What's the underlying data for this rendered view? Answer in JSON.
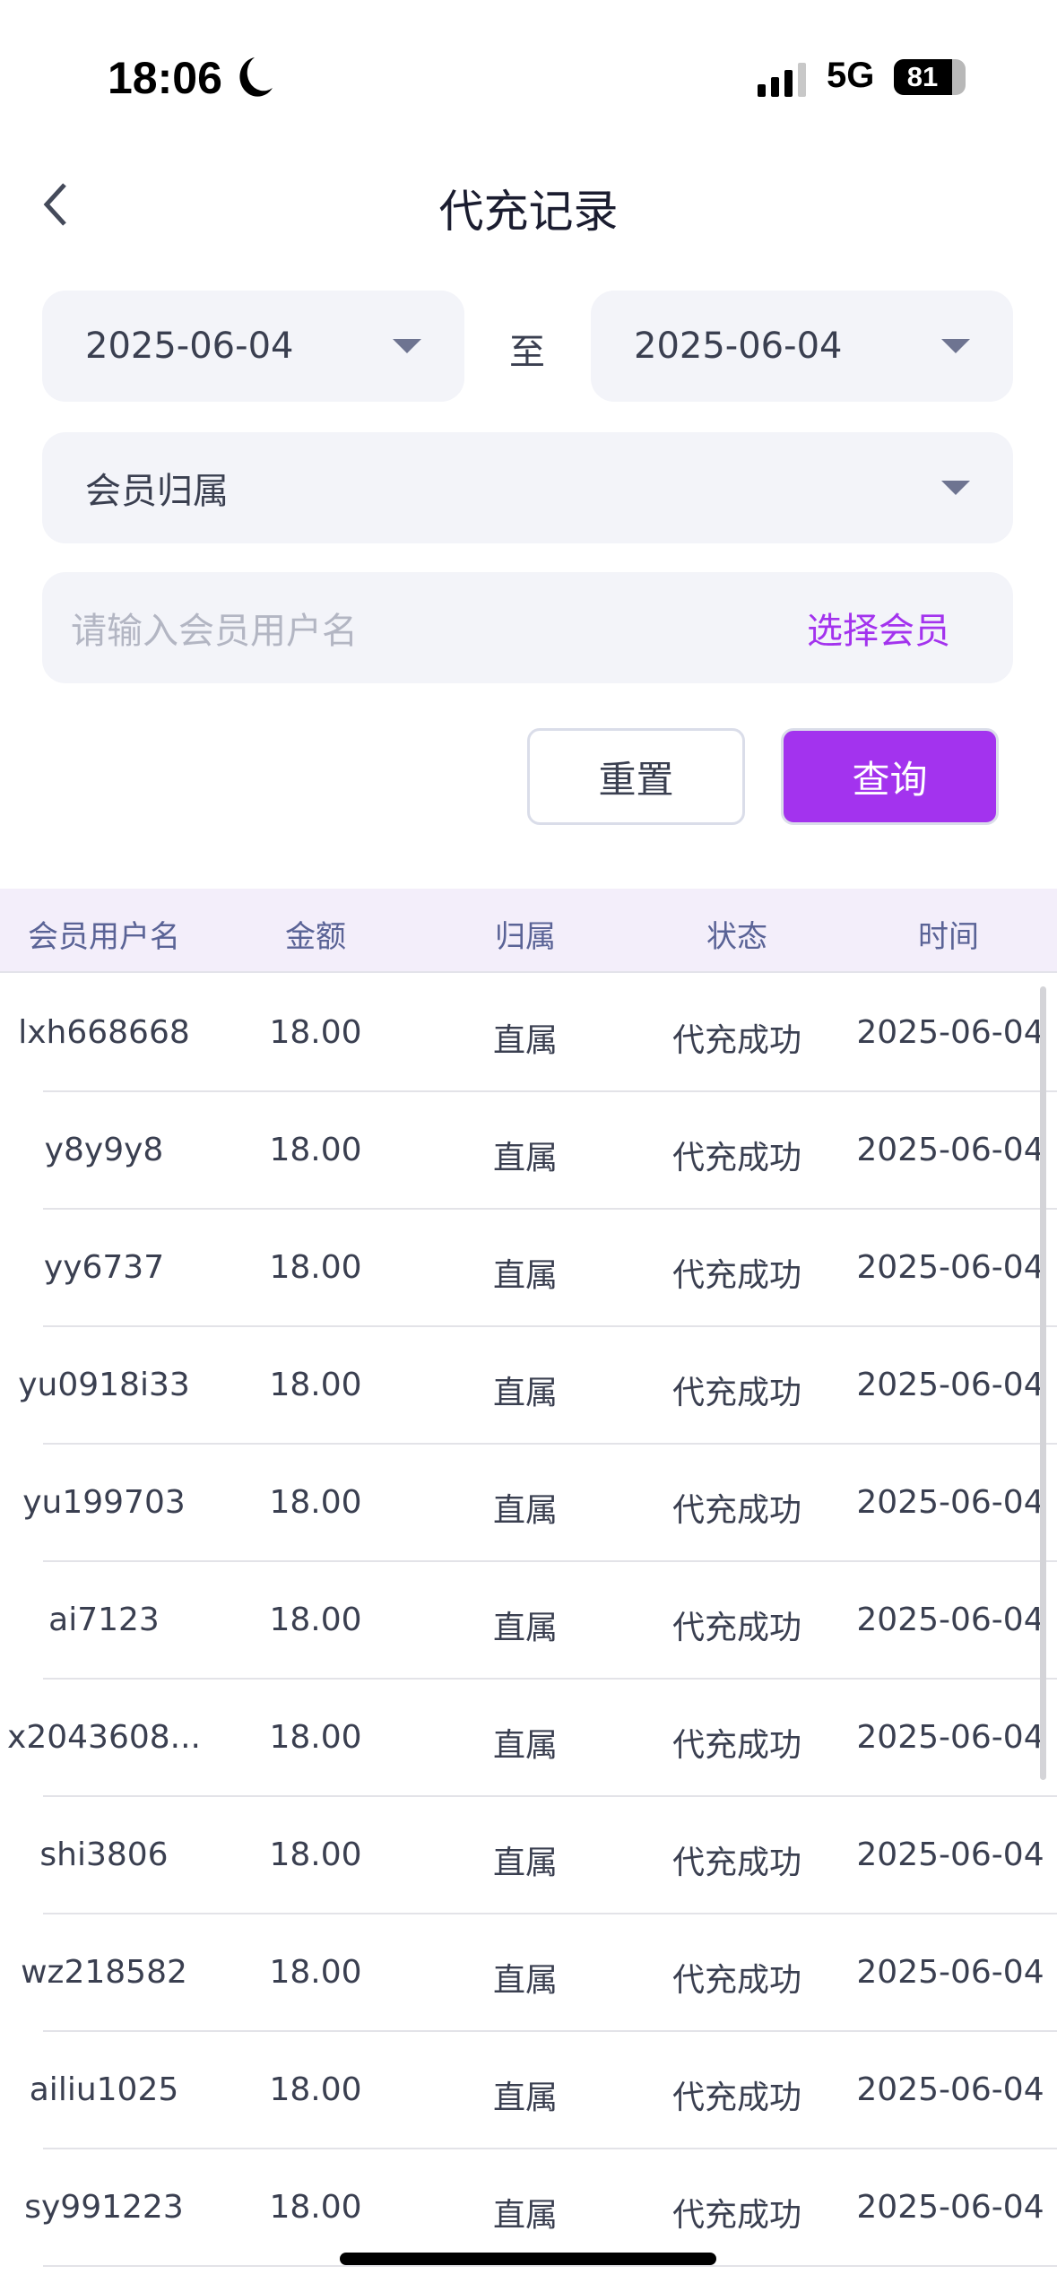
{
  "status_bar": {
    "time": "18:06",
    "network": "5G",
    "battery": "81",
    "battery_level": 81
  },
  "header": {
    "title": "代充记录",
    "back_icon": "chevron-left-icon"
  },
  "filters": {
    "start_date": "2025-06-04",
    "to_label": "至",
    "end_date": "2025-06-04",
    "member_affiliation": "会员归属",
    "username_placeholder": "请输入会员用户名",
    "select_member": "选择会员",
    "reset": "重置",
    "query": "查询"
  },
  "colors": {
    "accent": "#a333ee",
    "header_bg": "#f3eefa",
    "field_bg": "#f3f4f9"
  },
  "table": {
    "columns": [
      "会员用户名",
      "金额",
      "归属",
      "状态",
      "时间"
    ],
    "rows": [
      [
        "lxh668668",
        "18.00",
        "直属",
        "代充成功",
        "2025-06-04"
      ],
      [
        "y8y9y8",
        "18.00",
        "直属",
        "代充成功",
        "2025-06-04"
      ],
      [
        "yy6737",
        "18.00",
        "直属",
        "代充成功",
        "2025-06-04"
      ],
      [
        "yu0918i33",
        "18.00",
        "直属",
        "代充成功",
        "2025-06-04"
      ],
      [
        "yu199703",
        "18.00",
        "直属",
        "代充成功",
        "2025-06-04"
      ],
      [
        "ai7123",
        "18.00",
        "直属",
        "代充成功",
        "2025-06-04"
      ],
      [
        "x2043608...",
        "18.00",
        "直属",
        "代充成功",
        "2025-06-04"
      ],
      [
        "shi3806",
        "18.00",
        "直属",
        "代充成功",
        "2025-06-04"
      ],
      [
        "wz218582",
        "18.00",
        "直属",
        "代充成功",
        "2025-06-04"
      ],
      [
        "ailiu1025",
        "18.00",
        "直属",
        "代充成功",
        "2025-06-04"
      ],
      [
        "sy991223",
        "18.00",
        "直属",
        "代充成功",
        "2025-06-04"
      ]
    ]
  }
}
